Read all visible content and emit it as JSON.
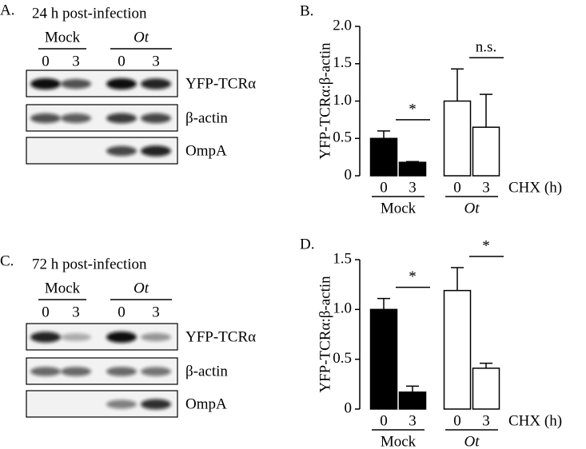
{
  "blots": [
    {
      "label": "A.",
      "title": "24 h post-infection",
      "groups": [
        "Mock",
        "Ot"
      ],
      "lanes": [
        "0",
        "3",
        "0",
        "3"
      ],
      "rows": [
        "YFP-TCRα",
        "β-actin",
        "OmpA"
      ]
    },
    {
      "label": "C.",
      "title": "72 h post-infection",
      "groups": [
        "Mock",
        "Ot"
      ],
      "lanes": [
        "0",
        "3",
        "0",
        "3"
      ],
      "rows": [
        "YFP-TCRα",
        "β-actin",
        "OmpA"
      ]
    }
  ],
  "chart_data": [
    {
      "type": "bar",
      "label": "B.",
      "ylabel": "YFP-TCRα:β-actin",
      "xlabel": "CHX (h)",
      "categories": [
        "0",
        "3"
      ],
      "series": [
        {
          "name": "Mock",
          "color": "#000000",
          "values": [
            0.5,
            0.18
          ],
          "errors": [
            0.1,
            0.01
          ]
        },
        {
          "name": "Ot",
          "color": "#ffffff",
          "values": [
            1.0,
            0.65
          ],
          "errors": [
            0.43,
            0.44
          ]
        }
      ],
      "annotations": [
        "*",
        "n.s."
      ],
      "ylim": [
        0,
        2.0
      ],
      "yticks": [
        0,
        0.5,
        {
          "value": 1.0,
          "label": "1.0"
        },
        1.5,
        {
          "value": 2.0,
          "label": "2.0"
        }
      ]
    },
    {
      "type": "bar",
      "label": "D.",
      "ylabel": "YFP-TCRα:β-actin",
      "xlabel": "CHX (h)",
      "categories": [
        "0",
        "3"
      ],
      "series": [
        {
          "name": "Mock",
          "color": "#000000",
          "values": [
            1.0,
            0.17
          ],
          "errors": [
            0.11,
            0.06
          ]
        },
        {
          "name": "Ot",
          "color": "#ffffff",
          "values": [
            1.19,
            0.41
          ],
          "errors": [
            0.23,
            0.05
          ]
        }
      ],
      "annotations": [
        "*",
        "*"
      ],
      "ylim": [
        0,
        1.5
      ],
      "yticks": [
        0,
        0.5,
        {
          "value": 1.0,
          "label": "1.0"
        },
        1.5
      ]
    }
  ]
}
